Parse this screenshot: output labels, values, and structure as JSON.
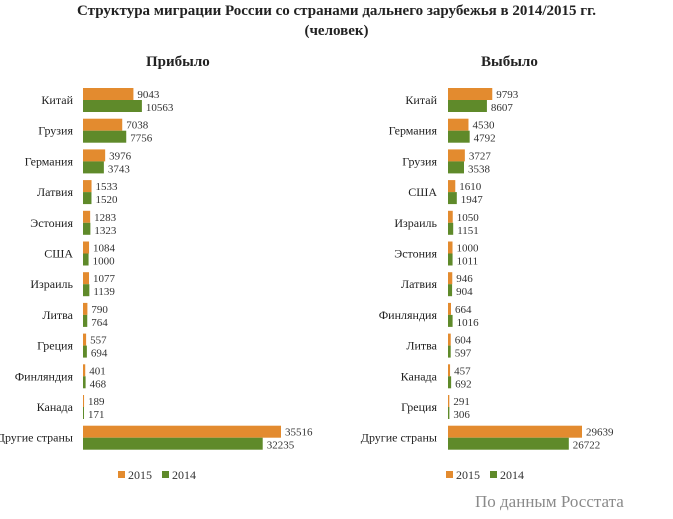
{
  "title_line1": "Структура миграции России со странами дальнего зарубежья в 2014/2015 гг.",
  "title_line2": "(человек)",
  "footer": "По данным Росстата",
  "colors": {
    "2015": "#E38B2F",
    "2014": "#5F8A2A"
  },
  "chart_data": [
    {
      "type": "bar",
      "title": "Прибыло",
      "categories": [
        "Китай",
        "Грузия",
        "Германия",
        "Латвия",
        "Эстония",
        "США",
        "Израиль",
        "Литва",
        "Греция",
        "Финляндия",
        "Канада",
        "Другие страны"
      ],
      "series": [
        {
          "name": "2015",
          "values": [
            9043,
            7038,
            3976,
            1533,
            1283,
            1084,
            1077,
            790,
            557,
            401,
            189,
            35516
          ]
        },
        {
          "name": "2014",
          "values": [
            10563,
            7756,
            3743,
            1520,
            1323,
            1000,
            1139,
            764,
            694,
            468,
            171,
            32235
          ]
        }
      ],
      "legend": "bottom"
    },
    {
      "type": "bar",
      "title": "Выбыло",
      "categories": [
        "Китай",
        "Германия",
        "Грузия",
        "США",
        "Израиль",
        "Эстония",
        "Латвия",
        "Финляндия",
        "Литва",
        "Канада",
        "Греция",
        "Другие страны"
      ],
      "series": [
        {
          "name": "2015",
          "values": [
            9793,
            4530,
            3727,
            1610,
            1050,
            1000,
            946,
            664,
            604,
            457,
            291,
            29639
          ]
        },
        {
          "name": "2014",
          "values": [
            8607,
            4792,
            3538,
            1947,
            1151,
            1011,
            904,
            1016,
            597,
            692,
            306,
            26722
          ]
        }
      ],
      "legend": "bottom"
    }
  ]
}
